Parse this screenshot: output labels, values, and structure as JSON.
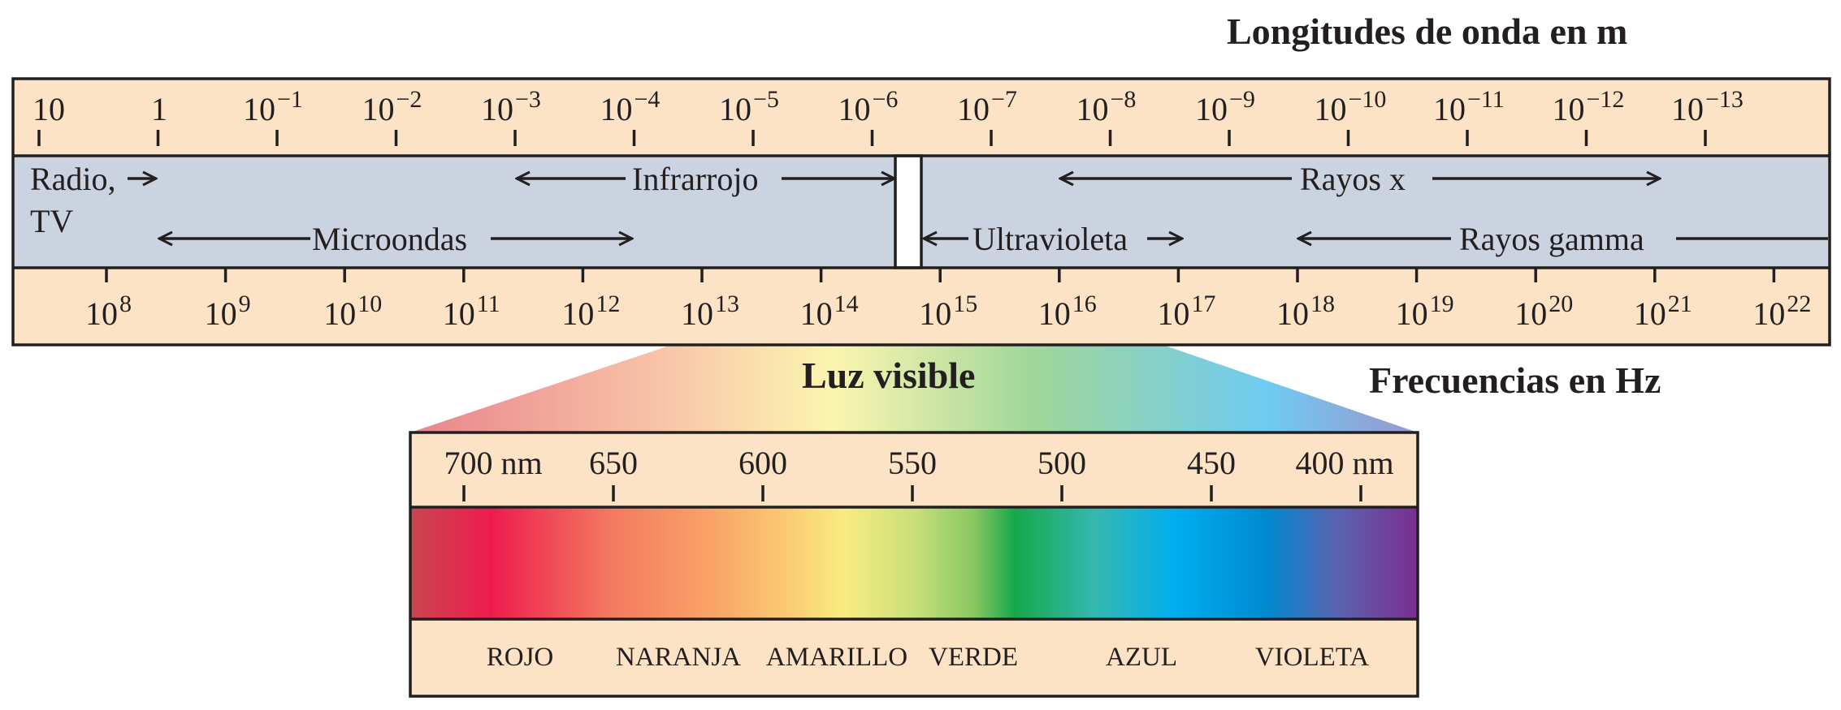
{
  "titles": {
    "wavelength": "Longitudes de onda en m",
    "frequency": "Frecuencias en Hz",
    "visible": "Luz visible"
  },
  "wavelength_ticks": [
    {
      "base": "10",
      "exp": ""
    },
    {
      "base": "1",
      "exp": ""
    },
    {
      "base": "10",
      "exp": "−1"
    },
    {
      "base": "10",
      "exp": "−2"
    },
    {
      "base": "10",
      "exp": "−3"
    },
    {
      "base": "10",
      "exp": "−4"
    },
    {
      "base": "10",
      "exp": "−5"
    },
    {
      "base": "10",
      "exp": "−6"
    },
    {
      "base": "10",
      "exp": "−7"
    },
    {
      "base": "10",
      "exp": "−8"
    },
    {
      "base": "10",
      "exp": "−9"
    },
    {
      "base": "10",
      "exp": "−10"
    },
    {
      "base": "10",
      "exp": "−11"
    },
    {
      "base": "10",
      "exp": "−12"
    },
    {
      "base": "10",
      "exp": "−13"
    }
  ],
  "frequency_ticks": [
    {
      "base": "10",
      "exp": "8"
    },
    {
      "base": "10",
      "exp": "9"
    },
    {
      "base": "10",
      "exp": "10"
    },
    {
      "base": "10",
      "exp": "11"
    },
    {
      "base": "10",
      "exp": "12"
    },
    {
      "base": "10",
      "exp": "13"
    },
    {
      "base": "10",
      "exp": "14"
    },
    {
      "base": "10",
      "exp": "15"
    },
    {
      "base": "10",
      "exp": "16"
    },
    {
      "base": "10",
      "exp": "17"
    },
    {
      "base": "10",
      "exp": "18"
    },
    {
      "base": "10",
      "exp": "19"
    },
    {
      "base": "10",
      "exp": "20"
    },
    {
      "base": "10",
      "exp": "21"
    },
    {
      "base": "10",
      "exp": "22"
    }
  ],
  "regions": {
    "radio_line1": "Radio,",
    "radio_line2": "TV",
    "microwave": "Microondas",
    "infrared": "Infrarrojo",
    "ultraviolet": "Ultravioleta",
    "xray": "Rayos x",
    "gamma": "Rayos gamma"
  },
  "visible_ticks": [
    "700 nm",
    "650",
    "600",
    "550",
    "500",
    "450",
    "400 nm"
  ],
  "color_names": [
    "ROJO",
    "NARANJA",
    "AMARILLO",
    "VERDE",
    "AZUL",
    "VIOLETA"
  ],
  "colors": {
    "band_background": "#fde3c6",
    "region_band": "#cbd3e1",
    "outline": "#231f20",
    "spectrum": [
      "#c8474f",
      "#ee1c4e",
      "#f37a5f",
      "#f8a467",
      "#fbc871",
      "#f8ec80",
      "#c9df7a",
      "#88c762",
      "#16a84b",
      "#35b8b0",
      "#00aeef",
      "#0089cf",
      "#5a63b1",
      "#7b2e8f"
    ]
  }
}
